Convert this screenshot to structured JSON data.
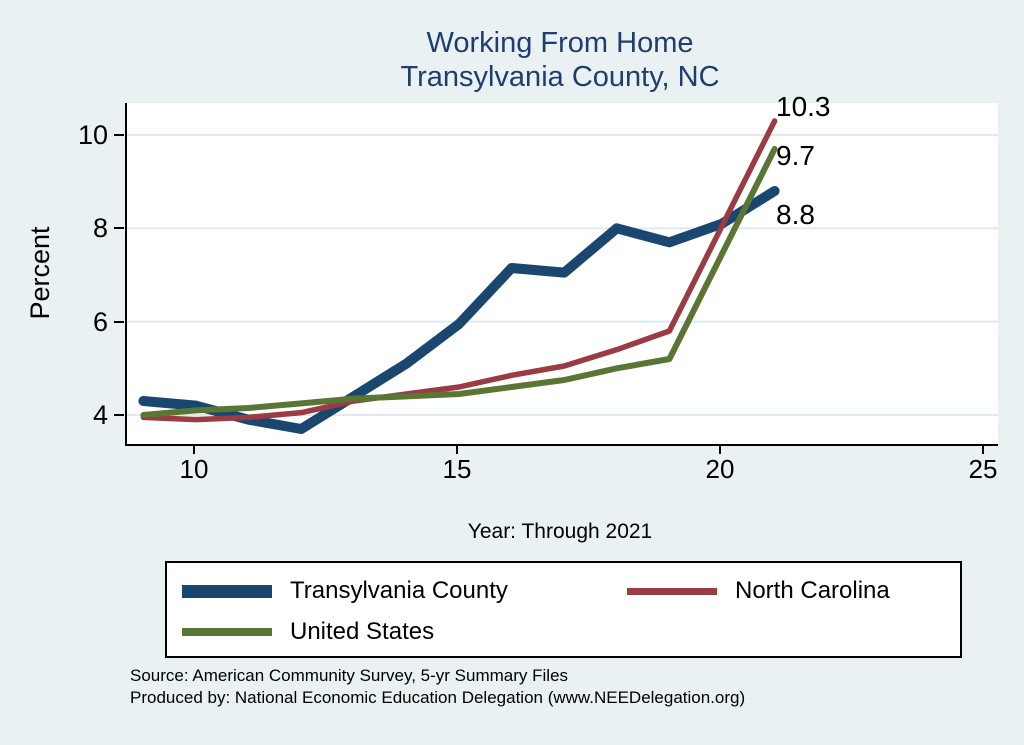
{
  "title": {
    "line1": "Working From Home",
    "line2": "Transylvania County, NC"
  },
  "chart_data": {
    "type": "line",
    "title": "Working From Home — Transylvania County, NC",
    "xlabel": "Year: Through 2021",
    "ylabel": "Percent",
    "x": [
      2009,
      2010,
      2011,
      2012,
      2013,
      2014,
      2015,
      2016,
      2017,
      2018,
      2019,
      2020,
      2021
    ],
    "series": [
      {
        "name": "Transylvania County",
        "color": "#1a476f",
        "values": [
          4.3,
          4.2,
          3.9,
          3.7,
          4.4,
          5.1,
          5.95,
          7.15,
          7.05,
          8.0,
          7.7,
          8.1,
          8.8
        ],
        "end_label": "8.8"
      },
      {
        "name": "North Carolina",
        "color": "#9b3b44",
        "values": [
          3.95,
          3.9,
          3.95,
          4.05,
          4.3,
          4.45,
          4.6,
          4.85,
          5.05,
          5.4,
          5.8,
          8.05,
          10.3
        ],
        "end_label": "10.3"
      },
      {
        "name": "United States",
        "color": "#5a7634",
        "values": [
          4.0,
          4.1,
          4.15,
          4.25,
          4.35,
          4.4,
          4.45,
          4.6,
          4.75,
          5.0,
          5.2,
          7.45,
          9.7
        ],
        "end_label": "9.7"
      }
    ],
    "xticks": [
      "10",
      "15",
      "20",
      "25"
    ],
    "yticks": [
      "4",
      "6",
      "8",
      "10"
    ],
    "xtick_values": [
      2010,
      2015,
      2020,
      2025
    ],
    "ytick_values": [
      4,
      6,
      8,
      10
    ],
    "xlim": [
      2008.7,
      2025.3
    ],
    "ylim": [
      3.35,
      10.65
    ],
    "grid": true,
    "legend_position": "bottom"
  },
  "legend": {
    "items": [
      {
        "label": "Transylvania County"
      },
      {
        "label": "North Carolina"
      },
      {
        "label": "United States"
      }
    ]
  },
  "source": {
    "line1": "Source: American Community Survey, 5-yr Summary Files",
    "line2": "Produced by: National Economic Education Delegation (www.NEEDelegation.org)"
  },
  "colors": {
    "background": "#e9f1f3",
    "plot_background": "#ffffff",
    "title_text": "#1f3d6e",
    "gridline": "#dfebf1",
    "transylvania_county": "#1a476f",
    "north_carolina": "#9b3b44",
    "united_states": "#5a7634"
  }
}
